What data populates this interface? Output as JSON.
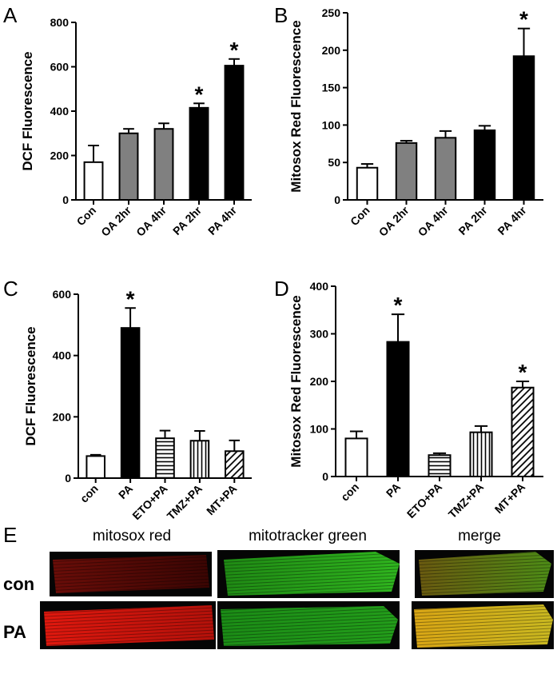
{
  "chart_data": [
    {
      "type": "bar",
      "panel": "A",
      "y_label": "DCF Fluorescence",
      "categories": [
        "Con",
        "OA 2hr",
        "OA 4hr",
        "PA 2hr",
        "PA 4hr"
      ],
      "values": [
        170,
        300,
        320,
        415,
        605
      ],
      "errors": [
        75,
        20,
        25,
        20,
        30
      ],
      "fills": [
        "white",
        "#808080",
        "#808080",
        "black",
        "black"
      ],
      "ylim": [
        0,
        800
      ],
      "yticks": [
        0,
        200,
        400,
        600,
        800
      ],
      "annotations": [
        {
          "text": "*",
          "category": "PA 2hr"
        },
        {
          "text": "*",
          "category": "PA 4hr"
        }
      ]
    },
    {
      "type": "bar",
      "panel": "B",
      "y_label": "Mitosox Red Fluorescence",
      "categories": [
        "Con",
        "OA 2hr",
        "OA 4hr",
        "PA 2hr",
        "PA 4hr"
      ],
      "values": [
        43,
        76,
        83,
        93,
        192
      ],
      "errors": [
        5,
        3,
        9,
        6,
        37
      ],
      "fills": [
        "white",
        "#808080",
        "#808080",
        "black",
        "black"
      ],
      "ylim": [
        0,
        250
      ],
      "yticks": [
        0,
        50,
        100,
        150,
        200,
        250
      ],
      "annotations": [
        {
          "text": "*",
          "category": "PA 4hr"
        }
      ]
    },
    {
      "type": "bar",
      "panel": "C",
      "y_label": "DCF Fluorescence",
      "categories": [
        "con",
        "PA",
        "ETO+PA",
        "TMZ+PA",
        "MT+PA"
      ],
      "values": [
        72,
        490,
        130,
        122,
        88
      ],
      "errors": [
        4,
        65,
        25,
        32,
        35
      ],
      "fills": [
        "white",
        "black",
        "hlines",
        "vlines",
        "diag"
      ],
      "ylim": [
        0,
        600
      ],
      "yticks": [
        0,
        200,
        400,
        600
      ],
      "annotations": [
        {
          "text": "*",
          "category": "PA"
        }
      ]
    },
    {
      "type": "bar",
      "panel": "D",
      "y_label": "Mitosox Red Fluorescence",
      "categories": [
        "con",
        "PA",
        "ETO+PA",
        "TMZ+PA",
        "MT+PA"
      ],
      "values": [
        80,
        283,
        45,
        93,
        187
      ],
      "errors": [
        15,
        58,
        4,
        13,
        13
      ],
      "fills": [
        "white",
        "black",
        "hlines",
        "vlines",
        "diag"
      ],
      "ylim": [
        0,
        400
      ],
      "yticks": [
        0,
        100,
        200,
        300,
        400
      ],
      "annotations": [
        {
          "text": "*",
          "category": "PA"
        },
        {
          "text": "*",
          "category": "MT+PA"
        }
      ]
    }
  ],
  "panel_e": {
    "label": "E",
    "columns": [
      "mitosox red",
      "mitotracker green",
      "merge"
    ],
    "rows": [
      "con",
      "PA"
    ]
  }
}
